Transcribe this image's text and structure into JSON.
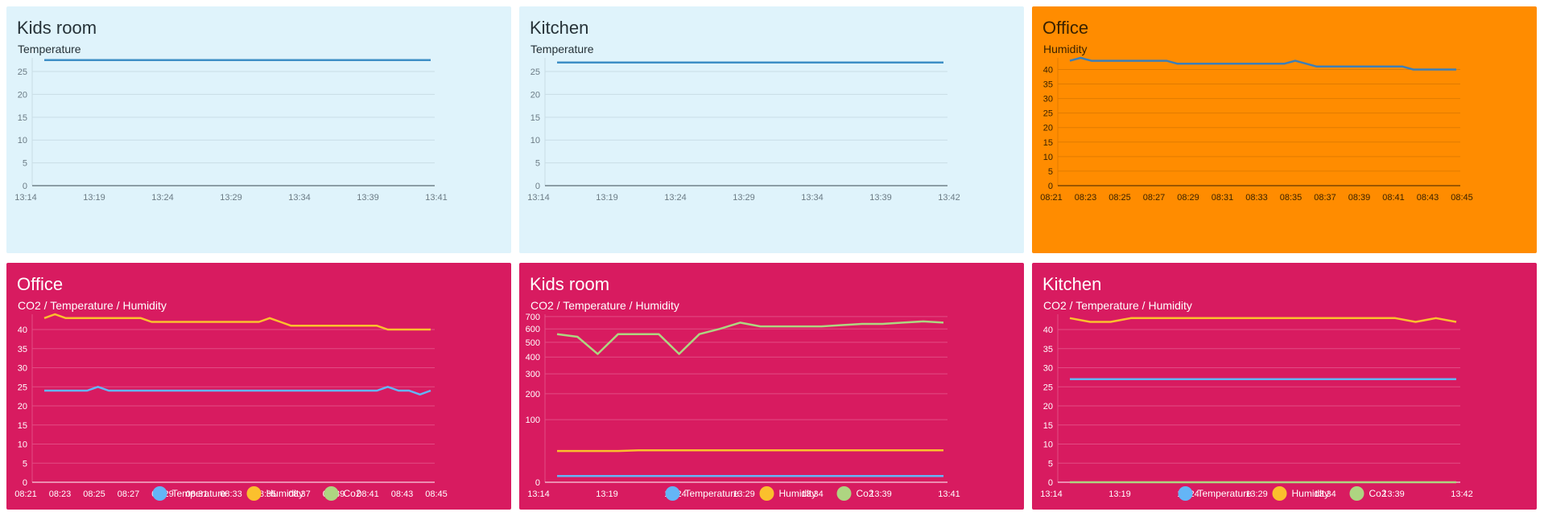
{
  "theme": {
    "light_bg": "#dff3fb",
    "orange_bg": "#ff8c00",
    "pink_bg": "#d81b60",
    "dark_text": "#263238",
    "light_text": "#ffffff",
    "temp_color": "#64b5f6",
    "humidity_color": "#fbc02d",
    "co2_color": "#aed581",
    "line_color_light": "#3d8fc6",
    "line_color_orange": "#3d7fb8"
  },
  "cards": [
    {
      "id": "kids-room-temperature",
      "title": "Kids room",
      "subtitle": "Temperature",
      "chart_data": {
        "type": "line",
        "xticks": [
          "13:14",
          "13:19",
          "13:24",
          "13:29",
          "13:34",
          "13:39",
          "13:41"
        ],
        "yticks": [
          0,
          5,
          10,
          15,
          20,
          25
        ],
        "ylim": [
          0,
          28
        ],
        "series": [
          {
            "name": "Temperature",
            "values": [
              27.5,
              27.5,
              27.5,
              27.5,
              27.5,
              27.5,
              27.5,
              27.5,
              27.5,
              27.5,
              27.5
            ]
          }
        ],
        "legend": false
      }
    },
    {
      "id": "kitchen-temperature",
      "title": "Kitchen",
      "subtitle": "Temperature",
      "chart_data": {
        "type": "line",
        "xticks": [
          "13:14",
          "13:19",
          "13:24",
          "13:29",
          "13:34",
          "13:39",
          "13:42"
        ],
        "yticks": [
          0,
          5,
          10,
          15,
          20,
          25
        ],
        "ylim": [
          0,
          28
        ],
        "series": [
          {
            "name": "Temperature",
            "values": [
              27,
              27,
              27,
              27,
              27,
              27,
              27,
              27,
              27,
              27,
              27
            ]
          }
        ],
        "legend": false
      }
    },
    {
      "id": "office-humidity",
      "title": "Office",
      "subtitle": "Humidity",
      "chart_data": {
        "type": "line",
        "xticks": [
          "08:21",
          "08:23",
          "08:25",
          "08:27",
          "08:29",
          "08:31",
          "08:33",
          "08:35",
          "08:37",
          "08:39",
          "08:41",
          "08:43",
          "08:45"
        ],
        "yticks": [
          0,
          5,
          10,
          15,
          20,
          25,
          30,
          35,
          40
        ],
        "ylim": [
          0,
          44
        ],
        "series": [
          {
            "name": "Humidity",
            "values": [
              43,
              44,
              43,
              43,
              43,
              43,
              43,
              43,
              43,
              43,
              42,
              42,
              42,
              42,
              42,
              42,
              42,
              42,
              42,
              42,
              42,
              43,
              42,
              41,
              41,
              41,
              41,
              41,
              41,
              41,
              41,
              41,
              40,
              40,
              40,
              40,
              40
            ]
          }
        ],
        "legend": false
      }
    },
    {
      "id": "office-co2-temp-humidity",
      "title": "Office",
      "subtitle": "CO2 / Temperature / Humidity",
      "chart_data": {
        "type": "line",
        "xticks": [
          "08:21",
          "08:23",
          "08:25",
          "08:27",
          "08:29",
          "08:31",
          "08:33",
          "08:35",
          "08:37",
          "08:39",
          "08:41",
          "08:43",
          "08:45"
        ],
        "yticks": [
          0,
          5,
          10,
          15,
          20,
          25,
          30,
          35,
          40
        ],
        "ylim": [
          0,
          44
        ],
        "series": [
          {
            "name": "Temperature",
            "values": [
              24,
              24,
              24,
              24,
              24,
              25,
              24,
              24,
              24,
              24,
              24,
              24,
              24,
              24,
              24,
              24,
              24,
              24,
              24,
              24,
              24,
              24,
              24,
              24,
              24,
              24,
              24,
              24,
              24,
              24,
              24,
              24,
              25,
              24,
              24,
              23,
              24
            ]
          },
          {
            "name": "Humidity",
            "values": [
              43,
              44,
              43,
              43,
              43,
              43,
              43,
              43,
              43,
              43,
              42,
              42,
              42,
              42,
              42,
              42,
              42,
              42,
              42,
              42,
              42,
              43,
              42,
              41,
              41,
              41,
              41,
              41,
              41,
              41,
              41,
              41,
              40,
              40,
              40,
              40,
              40
            ]
          },
          {
            "name": "Co2",
            "values": []
          }
        ],
        "legend": true,
        "legend_labels": [
          "Temperature",
          "Humidity",
          "Co2"
        ]
      }
    },
    {
      "id": "kids-room-co2-temp-humidity",
      "title": "Kids room",
      "subtitle": "CO2 / Temperature / Humidity",
      "chart_data": {
        "type": "line",
        "scale": "sqrt",
        "xticks": [
          "13:14",
          "13:19",
          "13:24",
          "13:29",
          "13:34",
          "13:39",
          "13:41"
        ],
        "yticks": [
          0,
          100,
          200,
          300,
          400,
          500,
          600,
          700
        ],
        "ylim": [
          0,
          720
        ],
        "series": [
          {
            "name": "Temperature",
            "values": [
              1,
              1,
              1,
              1,
              1,
              1,
              1,
              1,
              1,
              1,
              1,
              1,
              1,
              1,
              1,
              1,
              1,
              1,
              1,
              1
            ]
          },
          {
            "name": "Humidity",
            "values": [
              25,
              25,
              25,
              25,
              26,
              26,
              26,
              26,
              26,
              26,
              26,
              26,
              26,
              26,
              26,
              26,
              26,
              26,
              26,
              26
            ]
          },
          {
            "name": "Co2",
            "values": [
              560,
              540,
              420,
              560,
              560,
              560,
              420,
              560,
              600,
              650,
              620,
              620,
              620,
              620,
              630,
              640,
              640,
              650,
              660,
              650
            ]
          }
        ],
        "legend": true,
        "legend_labels": [
          "Temperature",
          "Humidity",
          "Co2"
        ]
      }
    },
    {
      "id": "kitchen-co2-temp-humidity",
      "title": "Kitchen",
      "subtitle": "CO2 / Temperature / Humidity",
      "chart_data": {
        "type": "line",
        "xticks": [
          "13:14",
          "13:19",
          "13:24",
          "13:29",
          "13:34",
          "13:39",
          "13:42"
        ],
        "yticks": [
          0,
          5,
          10,
          15,
          20,
          25,
          30,
          35,
          40
        ],
        "ylim": [
          0,
          44
        ],
        "series": [
          {
            "name": "Temperature",
            "values": [
              27,
              27,
              27,
              27,
              27,
              27,
              27,
              27,
              27,
              27,
              27,
              27,
              27,
              27,
              27,
              27,
              27,
              27,
              27,
              27
            ]
          },
          {
            "name": "Humidity",
            "values": [
              43,
              42,
              42,
              43,
              43,
              43,
              43,
              43,
              43,
              43,
              43,
              43,
              43,
              43,
              43,
              43,
              43,
              42,
              43,
              42
            ]
          },
          {
            "name": "Co2",
            "values": [
              0,
              0,
              0,
              0,
              0,
              0,
              0,
              0,
              0,
              0,
              0,
              0,
              0,
              0,
              0,
              0,
              0,
              0,
              0,
              0
            ]
          }
        ],
        "legend": true,
        "legend_labels": [
          "Temperature",
          "Humidity",
          "Co2"
        ]
      }
    }
  ]
}
